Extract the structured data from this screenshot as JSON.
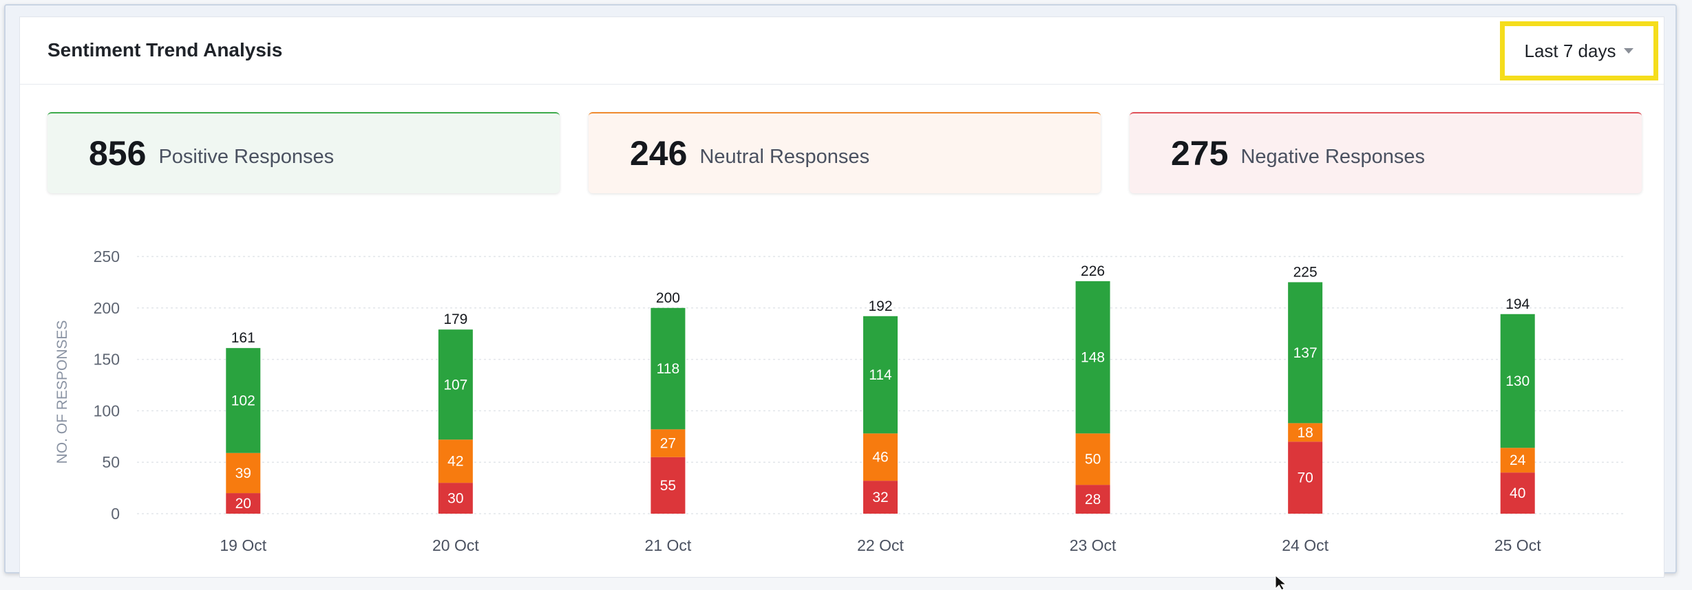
{
  "header": {
    "title": "Sentiment Trend Analysis",
    "range_label": "Last 7 days"
  },
  "summary": [
    {
      "value": "856",
      "label": "Positive Responses"
    },
    {
      "value": "246",
      "label": "Neutral Responses"
    },
    {
      "value": "275",
      "label": "Negative Responses"
    }
  ],
  "colors": {
    "positive": "#2aa33f",
    "neutral": "#f77b0f",
    "negative": "#dc363a"
  },
  "chart_data": {
    "type": "bar",
    "stacked": true,
    "categories": [
      "19 Oct",
      "20 Oct",
      "21 Oct",
      "22 Oct",
      "23 Oct",
      "24 Oct",
      "25 Oct"
    ],
    "series": [
      {
        "key": "negative",
        "values": [
          20,
          30,
          55,
          32,
          28,
          70,
          40
        ]
      },
      {
        "key": "neutral",
        "values": [
          39,
          42,
          27,
          46,
          50,
          18,
          24
        ]
      },
      {
        "key": "positive",
        "values": [
          102,
          107,
          118,
          114,
          148,
          137,
          130
        ]
      }
    ],
    "totals": [
      161,
      179,
      200,
      192,
      226,
      225,
      194
    ],
    "ylabel": "NO. OF RESPONSES",
    "ylim": [
      0,
      250
    ],
    "yticks": [
      0,
      50,
      100,
      150,
      200,
      250
    ],
    "grid": true
  }
}
